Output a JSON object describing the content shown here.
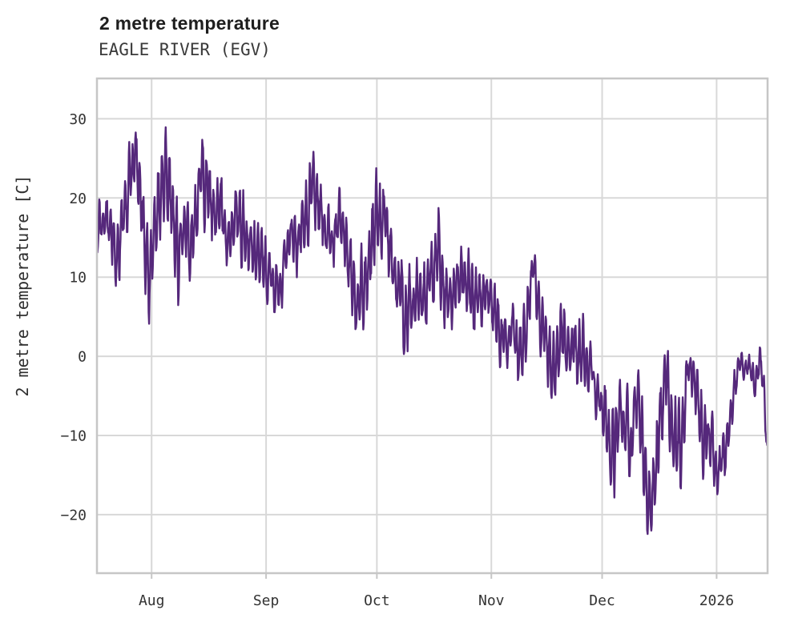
{
  "header": {
    "title": "2 metre temperature",
    "subtitle": "EAGLE RIVER (EGV)"
  },
  "chart_data": {
    "type": "line",
    "title": "2 metre temperature",
    "subtitle": "EAGLE RIVER (EGV)",
    "xlabel": "",
    "ylabel": "2 metre temperature [C]",
    "x_domain_description": "mid-July 2025 to mid-January 2026, hourly-resolution temperature trace",
    "y_ticks": [
      30,
      20,
      10,
      0,
      -10,
      -20
    ],
    "ylim": [
      -27.4,
      35.1
    ],
    "x_ticks": [
      {
        "label": "Aug",
        "day": 14.8
      },
      {
        "label": "Sep",
        "day": 45.8
      },
      {
        "label": "Oct",
        "day": 75.8
      },
      {
        "label": "Nov",
        "day": 106.8
      },
      {
        "label": "Dec",
        "day": 136.8
      },
      {
        "label": "2026",
        "day": 167.8
      }
    ],
    "x_range_days": [
      0,
      181.6
    ],
    "grid": true,
    "legend": "none",
    "line_color": "#55287b",
    "grid_color": "#d8d8d8",
    "axis_color": "#c6c6c6",
    "text_color": "#333333",
    "observed_extremes": {
      "max_C": 32.2,
      "max_when": "late Jul",
      "min_C": -24.6,
      "min_when": "mid Dec",
      "last_value_C": -13
    },
    "series": [
      {
        "name": "2 metre temperature",
        "color": "#55287b",
        "anchor_format": "[day_offset, mean_C, half_range_C] read from chart envelope; day 0 = left edge (~Jul 17)",
        "anchors": [
          [
            0,
            16,
            4
          ],
          [
            2,
            17,
            4
          ],
          [
            4,
            15,
            5
          ],
          [
            6,
            14,
            6
          ],
          [
            8,
            22,
            7
          ],
          [
            10,
            26,
            6
          ],
          [
            12,
            21,
            6
          ],
          [
            14,
            12,
            7
          ],
          [
            16,
            18,
            6
          ],
          [
            18,
            22,
            7
          ],
          [
            20,
            20,
            6
          ],
          [
            22,
            12,
            7
          ],
          [
            24,
            13,
            6
          ],
          [
            26,
            16,
            6
          ],
          [
            28,
            21,
            6
          ],
          [
            30,
            21,
            7
          ],
          [
            32,
            17,
            5
          ],
          [
            34,
            19,
            5
          ],
          [
            36,
            15,
            4
          ],
          [
            38,
            16,
            5
          ],
          [
            40,
            16,
            6
          ],
          [
            42,
            12,
            6
          ],
          [
            44,
            10,
            5
          ],
          [
            46,
            11,
            5
          ],
          [
            48,
            9,
            4
          ],
          [
            50,
            11,
            4
          ],
          [
            52,
            13,
            4
          ],
          [
            54,
            15,
            5
          ],
          [
            56,
            17,
            6
          ],
          [
            58,
            21,
            6
          ],
          [
            60,
            19,
            6
          ],
          [
            62,
            16,
            4
          ],
          [
            64,
            16,
            4
          ],
          [
            66,
            17,
            4
          ],
          [
            68,
            13,
            5
          ],
          [
            70,
            7,
            5
          ],
          [
            72,
            8,
            6
          ],
          [
            74,
            14,
            7
          ],
          [
            76,
            17,
            7
          ],
          [
            78,
            15,
            7
          ],
          [
            80,
            12,
            5
          ],
          [
            82,
            9,
            5
          ],
          [
            84,
            3,
            6
          ],
          [
            86,
            8,
            5
          ],
          [
            88,
            8,
            5
          ],
          [
            90,
            9,
            5
          ],
          [
            92,
            13,
            7
          ],
          [
            94,
            8,
            5
          ],
          [
            96,
            6,
            4
          ],
          [
            98,
            9,
            5
          ],
          [
            100,
            9,
            5
          ],
          [
            102,
            8,
            5
          ],
          [
            104,
            9,
            5
          ],
          [
            106,
            8,
            4
          ],
          [
            108,
            6,
            5
          ],
          [
            110,
            2,
            4
          ],
          [
            112,
            4,
            4
          ],
          [
            114,
            1,
            5
          ],
          [
            116,
            4,
            5
          ],
          [
            118,
            10,
            6
          ],
          [
            120,
            6,
            5
          ],
          [
            122,
            2,
            5
          ],
          [
            124,
            -3,
            7
          ],
          [
            126,
            0,
            6
          ],
          [
            128,
            3,
            5
          ],
          [
            130,
            -1,
            5
          ],
          [
            132,
            0,
            5
          ],
          [
            134,
            -3,
            4
          ],
          [
            136,
            -5,
            3
          ],
          [
            138,
            -8,
            5
          ],
          [
            140,
            -13,
            8
          ],
          [
            142,
            -6,
            4
          ],
          [
            144,
            -14,
            8
          ],
          [
            146,
            -5,
            4
          ],
          [
            148,
            -11,
            7
          ],
          [
            150,
            -19,
            6
          ],
          [
            152,
            -9,
            7
          ],
          [
            154,
            -1,
            5
          ],
          [
            156,
            -7,
            7
          ],
          [
            158,
            -13,
            8
          ],
          [
            160,
            -1,
            3
          ],
          [
            162,
            -3,
            4
          ],
          [
            164,
            -9,
            6
          ],
          [
            166,
            -11,
            5
          ],
          [
            168,
            -15,
            4
          ],
          [
            170,
            -12,
            4
          ],
          [
            172,
            -6,
            3
          ],
          [
            174,
            -1.5,
            2
          ],
          [
            176,
            -0.5,
            1.5
          ],
          [
            178,
            -3,
            3
          ],
          [
            180,
            -1,
            3
          ],
          [
            181,
            -7,
            5
          ],
          [
            181.6,
            -13,
            1
          ]
        ]
      }
    ]
  }
}
